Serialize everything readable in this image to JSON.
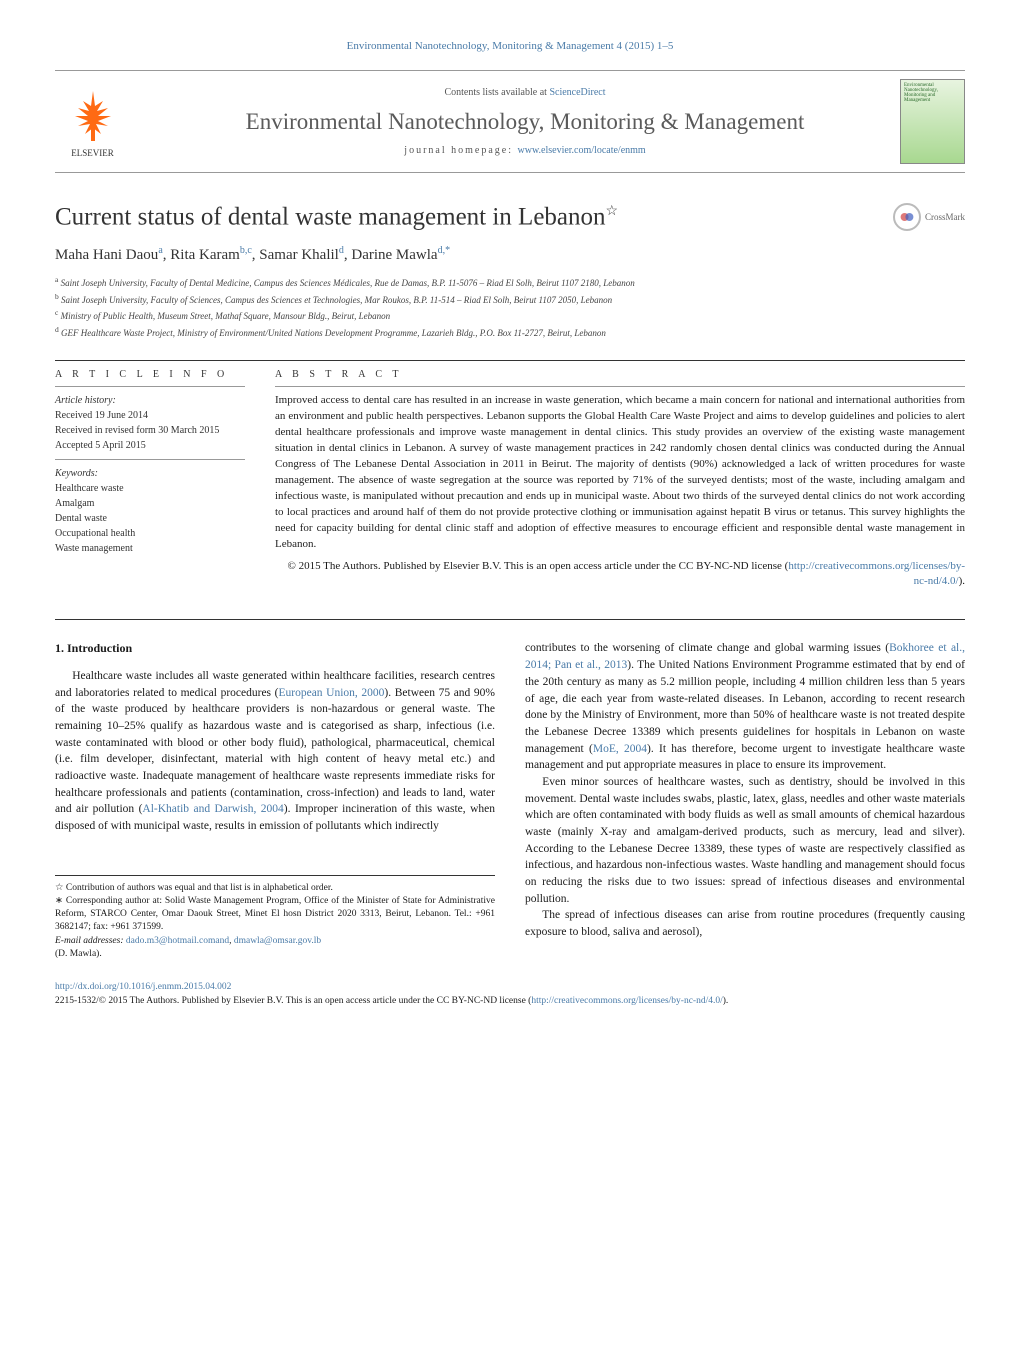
{
  "journal_ref": "Environmental Nanotechnology, Monitoring & Management 4 (2015) 1–5",
  "header": {
    "contents_prefix": "Contents lists available at ",
    "contents_link": "ScienceDirect",
    "journal_name": "Environmental Nanotechnology, Monitoring & Management",
    "homepage_prefix": "journal homepage: ",
    "homepage_url": "www.elsevier.com/locate/enmm",
    "publisher": "ELSEVIER",
    "cover_text": "Environmental Nanotechnology, Monitoring and Management"
  },
  "crossmark": "CrossMark",
  "article": {
    "title": "Current status of dental waste management in Lebanon",
    "title_note": "☆",
    "authors_html": "Maha Hani Daou<sup>a</sup>, Rita Karam<sup>b,c</sup>, Samar Khalil<sup>d</sup>, Darine Mawla<sup>d,*</sup>",
    "affiliations": [
      "a Saint Joseph University, Faculty of Dental Medicine, Campus des Sciences Médicales, Rue de Damas, B.P. 11-5076 – Riad El Solh, Beirut 1107 2180, Lebanon",
      "b Saint Joseph University, Faculty of Sciences, Campus des Sciences et Technologies, Mar Roukos, B.P. 11-514 – Riad El Solh, Beirut 1107 2050, Lebanon",
      "c Ministry of Public Health, Museum Street, Mathaf Square, Mansour Bldg., Beirut, Lebanon",
      "d GEF Healthcare Waste Project, Ministry of Environment/United Nations Development Programme, Lazarieh Bldg., P.O. Box 11-2727, Beirut, Lebanon"
    ]
  },
  "info": {
    "heading_info": "a r t i c l e   i n f o",
    "heading_abstract": "a b s t r a c t",
    "history_label": "Article history:",
    "history": [
      "Received 19 June 2014",
      "Received in revised form 30 March 2015",
      "Accepted 5 April 2015"
    ],
    "keywords_label": "Keywords:",
    "keywords": [
      "Healthcare waste",
      "Amalgam",
      "Dental waste",
      "Occupational health",
      "Waste management"
    ]
  },
  "abstract": {
    "text": "Improved access to dental care has resulted in an increase in waste generation, which became a main concern for national and international authorities from an environment and public health perspectives. Lebanon supports the Global Health Care Waste Project and aims to develop guidelines and policies to alert dental healthcare professionals and improve waste management in dental clinics. This study provides an overview of the existing waste management situation in dental clinics in Lebanon. A survey of waste management practices in 242 randomly chosen dental clinics was conducted during the Annual Congress of The Lebanese Dental Association in 2011 in Beirut. The majority of dentists (90%) acknowledged a lack of written procedures for waste management. The absence of waste segregation at the source was reported by 71% of the surveyed dentists; most of the waste, including amalgam and infectious waste, is manipulated without precaution and ends up in municipal waste. About two thirds of the surveyed dental clinics do not work according to local practices and around half of them do not provide protective clothing or immunisation against hepatit B virus or tetanus. This survey highlights the need for capacity building for dental clinic staff and adoption of effective measures to encourage efficient and responsible dental waste management in Lebanon.",
    "copyright": "© 2015 The Authors. Published by Elsevier B.V. This is an open access article under the CC BY-NC-ND license (",
    "license_url": "http://creativecommons.org/licenses/by-nc-nd/4.0/",
    "license_close": ")."
  },
  "body": {
    "section_num": "1.",
    "section_title": "Introduction",
    "col1_p1": "Healthcare waste includes all waste generated within healthcare facilities, research centres and laboratories related to medical procedures (",
    "col1_link1": "European Union, 2000",
    "col1_p1b": "). Between 75 and 90% of the waste produced by healthcare providers is non-hazardous or general waste. The remaining 10–25% qualify as hazardous waste and is categorised as sharp, infectious (i.e. waste contaminated with blood or other body fluid), pathological, pharmaceutical, chemical (i.e. film developer, disinfectant, material with high content of heavy metal etc.) and radioactive waste. Inadequate management of healthcare waste represents immediate risks for healthcare professionals and patients (contamination, cross-infection) and leads to land, water and air pollution (",
    "col1_link2": "Al-Khatib and Darwish, 2004",
    "col1_p1c": "). Improper incineration of this waste, when disposed of with municipal waste, results in emission of pollutants which indirectly",
    "col2_p1a": "contributes to the worsening of climate change and global warming issues (",
    "col2_link1": "Bokhoree et al., 2014; Pan et al., 2013",
    "col2_p1b": "). The United Nations Environment Programme estimated that by end of the 20th century as many as 5.2 million people, including 4 million children less than 5 years of age, die each year from waste-related diseases. In Lebanon, according to recent research done by the Ministry of Environment, more than 50% of healthcare waste is not treated despite the Lebanese Decree 13389 which presents guidelines for hospitals in Lebanon on waste management (",
    "col2_link2": "MoE, 2004",
    "col2_p1c": "). It has therefore, become urgent to investigate healthcare waste management and put appropriate measures in place to ensure its improvement.",
    "col2_p2": "Even minor sources of healthcare wastes, such as dentistry, should be involved in this movement. Dental waste includes swabs, plastic, latex, glass, needles and other waste materials which are often contaminated with body fluids as well as small amounts of chemical hazardous waste (mainly X-ray and amalgam-derived products, such as mercury, lead and silver). According to the Lebanese Decree 13389, these types of waste are respectively classified as infectious, and hazardous non-infectious wastes. Waste handling and management should focus on reducing the risks due to two issues: spread of infectious diseases and environmental pollution.",
    "col2_p3": "The spread of infectious diseases can arise from routine procedures (frequently causing exposure to blood, saliva and aerosol),"
  },
  "footnotes": {
    "contribution": "☆ Contribution of authors was equal and that list is in alphabetical order.",
    "corresponding": "∗ Corresponding author at: Solid Waste Management Program, Office of the Minister of State for Administrative Reform, STARCO Center, Omar Daouk Street, Minet El hosn District 2020 3313, Beirut, Lebanon. Tel.: +961 3682147; fax: +961 371599.",
    "email_label": "E-mail addresses: ",
    "email1": "dado.m3@hotmail.comand",
    "email2": "dmawla@omsar.gov.lb",
    "email_name": "(D. Mawla)."
  },
  "bottom": {
    "doi": "http://dx.doi.org/10.1016/j.enmm.2015.04.002",
    "issn_line": "2215-1532/© 2015 The Authors. Published by Elsevier B.V. This is an open access article under the CC BY-NC-ND license (",
    "license_url": "http://creativecommons.org/licenses/by-nc-nd/4.0/",
    "license_close": ")."
  },
  "colors": {
    "link": "#4a7ba8",
    "elsevier": "#ff6a13",
    "text": "#1a1a1a",
    "gray": "#5a5a5a"
  }
}
